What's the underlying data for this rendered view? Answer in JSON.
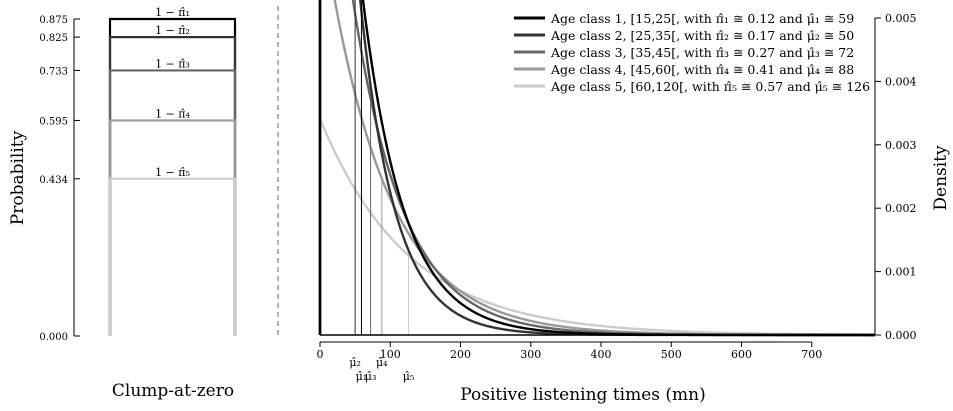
{
  "chart_data": [
    {
      "type": "bar",
      "title": "",
      "xlabel": "Clump-at-zero",
      "ylabel": "Probability",
      "ylim": [
        0,
        0.875
      ],
      "yticks": [
        "0.000",
        "0.434",
        "0.595",
        "0.733",
        "0.825",
        "0.875"
      ],
      "series": [
        {
          "name": "Age class 1",
          "label": "1 − π̂₁",
          "value": 0.875,
          "color": "#000000"
        },
        {
          "name": "Age class 2",
          "label": "1 − π̂₂",
          "value": 0.825,
          "color": "#333333"
        },
        {
          "name": "Age class 3",
          "label": "1 − π̂₃",
          "value": 0.733,
          "color": "#666666"
        },
        {
          "name": "Age class 4",
          "label": "1 − π̂₄",
          "value": 0.595,
          "color": "#999999"
        },
        {
          "name": "Age class 5",
          "label": "1 − π̂₅",
          "value": 0.434,
          "color": "#cccccc"
        }
      ]
    },
    {
      "type": "line",
      "title": "",
      "xlabel": "Positive listening times (mn)",
      "ylabel": "Density",
      "xlim": [
        0,
        790
      ],
      "ylim": [
        0,
        0.005
      ],
      "xticks": [
        0,
        100,
        200,
        300,
        400,
        500,
        600,
        700
      ],
      "xticklabels": [
        "0",
        "100",
        "200",
        "300",
        "400",
        "500",
        "600",
        "700"
      ],
      "yticks": [
        0,
        0.001,
        0.002,
        0.003,
        0.004,
        0.005
      ],
      "yticklabels": [
        "0.000",
        "0.001",
        "0.002",
        "0.003",
        "0.004",
        "0.005"
      ],
      "legend_position": "top-right",
      "series": [
        {
          "name": "Age class 1, [15,25[, with π̂₁ ≅ 0.12 and μ̂₁ ≅ 59",
          "pi": 0.12,
          "mu": 59,
          "color": "#000000",
          "mu_label": "μ̂₁"
        },
        {
          "name": "Age class 2, [25,35[, with π̂₂ ≅ 0.17 and μ̂₂ ≅ 50",
          "pi": 0.17,
          "mu": 50,
          "color": "#333333",
          "mu_label": "μ̂₂"
        },
        {
          "name": "Age class 3, [35,45[, with π̂₃ ≅ 0.27 and μ̂₃ ≅ 72",
          "pi": 0.27,
          "mu": 72,
          "color": "#666666",
          "mu_label": "μ̂₃"
        },
        {
          "name": "Age class 4, [45,60[, with π̂₄ ≅ 0.41 and μ̂₄ ≅ 88",
          "pi": 0.41,
          "mu": 88,
          "color": "#999999",
          "mu_label": "μ̂₄"
        },
        {
          "name": "Age class 5, [60,120[, with π̂₅ ≅ 0.57 and μ̂₅ ≅ 126",
          "pi": 0.57,
          "mu": 126,
          "color": "#cccccc",
          "mu_label": "μ̂₅"
        }
      ]
    }
  ]
}
